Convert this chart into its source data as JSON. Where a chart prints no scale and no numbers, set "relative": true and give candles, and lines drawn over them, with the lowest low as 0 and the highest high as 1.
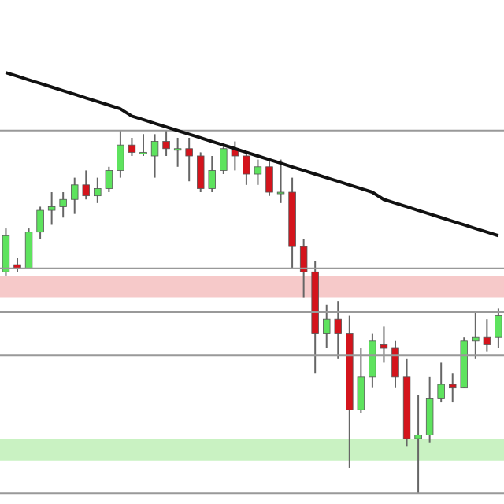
{
  "chart_data": {
    "type": "candlestick",
    "relative": true,
    "categories": [
      null,
      null,
      null,
      null,
      null,
      null,
      null,
      null,
      null,
      null,
      null,
      null,
      null,
      null,
      null,
      null,
      null,
      null,
      null,
      null,
      null,
      null,
      null,
      null,
      null,
      null,
      null,
      null,
      null,
      null,
      null,
      null,
      null,
      null,
      null,
      null,
      null,
      null,
      null,
      null,
      null,
      null,
      null,
      null
    ],
    "ohlc": [
      [
        0.61,
        0.73,
        0.6,
        0.71
      ],
      [
        0.63,
        0.65,
        0.61,
        0.62
      ],
      [
        0.62,
        0.73,
        0.62,
        0.72
      ],
      [
        0.72,
        0.79,
        0.7,
        0.78
      ],
      [
        0.78,
        0.83,
        0.74,
        0.79
      ],
      [
        0.79,
        0.83,
        0.76,
        0.81
      ],
      [
        0.81,
        0.87,
        0.77,
        0.85
      ],
      [
        0.85,
        0.89,
        0.81,
        0.82
      ],
      [
        0.82,
        0.87,
        0.8,
        0.84
      ],
      [
        0.84,
        0.9,
        0.83,
        0.89
      ],
      [
        0.89,
        1.0,
        0.87,
        0.96
      ],
      [
        0.96,
        0.98,
        0.93,
        0.94
      ],
      [
        0.94,
        0.99,
        0.93,
        0.94
      ],
      [
        0.93,
        0.99,
        0.87,
        0.97
      ],
      [
        0.97,
        1.0,
        0.93,
        0.95
      ],
      [
        0.95,
        0.98,
        0.9,
        0.95
      ],
      [
        0.95,
        0.98,
        0.86,
        0.93
      ],
      [
        0.93,
        0.94,
        0.83,
        0.84
      ],
      [
        0.84,
        0.93,
        0.83,
        0.89
      ],
      [
        0.89,
        0.96,
        0.88,
        0.95
      ],
      [
        0.95,
        0.97,
        0.89,
        0.93
      ],
      [
        0.93,
        0.94,
        0.85,
        0.88
      ],
      [
        0.88,
        0.92,
        0.85,
        0.9
      ],
      [
        0.9,
        0.92,
        0.82,
        0.83
      ],
      [
        0.83,
        0.92,
        0.8,
        0.83
      ],
      [
        0.83,
        0.87,
        0.62,
        0.68
      ],
      [
        0.68,
        0.7,
        0.54,
        0.61
      ],
      [
        0.61,
        0.64,
        0.33,
        0.44
      ],
      [
        0.44,
        0.52,
        0.4,
        0.48
      ],
      [
        0.48,
        0.53,
        0.37,
        0.44
      ],
      [
        0.44,
        0.49,
        0.07,
        0.23
      ],
      [
        0.23,
        0.4,
        0.22,
        0.32
      ],
      [
        0.32,
        0.44,
        0.29,
        0.42
      ],
      [
        0.41,
        0.46,
        0.36,
        0.4
      ],
      [
        0.4,
        0.42,
        0.29,
        0.32
      ],
      [
        0.32,
        0.37,
        0.13,
        0.15
      ],
      [
        0.15,
        0.27,
        0.0,
        0.16
      ],
      [
        0.16,
        0.32,
        0.14,
        0.26
      ],
      [
        0.26,
        0.36,
        0.25,
        0.3
      ],
      [
        0.3,
        0.33,
        0.25,
        0.29
      ],
      [
        0.29,
        0.43,
        0.29,
        0.42
      ],
      [
        0.42,
        0.5,
        0.37,
        0.43
      ],
      [
        0.43,
        0.48,
        0.39,
        0.41
      ],
      [
        0.43,
        0.51,
        0.4,
        0.49
      ]
    ],
    "colors": [
      "#5ee35e",
      "#d4141c",
      "#5ee35e",
      "#5ee35e",
      "#5ee35e",
      "#5ee35e",
      "#5ee35e",
      "#d4141c",
      "#5ee35e",
      "#5ee35e",
      "#5ee35e",
      "#d4141c",
      "#5ee35e",
      "#5ee35e",
      "#d4141c",
      "#5ee35e",
      "#d4141c",
      "#d4141c",
      "#5ee35e",
      "#5ee35e",
      "#d4141c",
      "#d4141c",
      "#5ee35e",
      "#d4141c",
      "#5ee35e",
      "#d4141c",
      "#d4141c",
      "#d4141c",
      "#5ee35e",
      "#d4141c",
      "#d4141c",
      "#5ee35e",
      "#5ee35e",
      "#d4141c",
      "#d4141c",
      "#d4141c",
      "#5ee35e",
      "#5ee35e",
      "#5ee35e",
      "#d4141c",
      "#5ee35e",
      "#5ee35e",
      "#d4141c",
      "#5ee35e"
    ],
    "series": [
      {
        "type": "line",
        "color": "#111111",
        "values": [
          1.16,
          1.15,
          1.14,
          1.13,
          1.12,
          1.11,
          1.1,
          1.09,
          1.08,
          1.07,
          1.06,
          1.04,
          1.03,
          1.02,
          1.01,
          1.0,
          0.99,
          0.98,
          0.97,
          0.96,
          0.95,
          0.94,
          0.93,
          0.92,
          0.91,
          0.9,
          0.89,
          0.88,
          0.87,
          0.86,
          0.85,
          0.84,
          0.83,
          0.81,
          0.8,
          0.79,
          0.78,
          0.77,
          0.76,
          0.75,
          0.74,
          0.73,
          0.72,
          0.71
        ]
      }
    ],
    "ref_lines": [
      {
        "axis": "y",
        "value": 1.0,
        "color": "#999999"
      },
      {
        "axis": "y",
        "value": 0.62,
        "color": "#999999"
      },
      {
        "axis": "y",
        "value": 0.5,
        "color": "#999999"
      },
      {
        "axis": "y",
        "value": 0.38,
        "color": "#999999"
      },
      {
        "axis": "y",
        "value": 0.0,
        "color": "#999999"
      }
    ],
    "bands": [
      {
        "axis": "y",
        "from": 0.54,
        "to": 0.6,
        "color": "#f6c9c9"
      },
      {
        "axis": "y",
        "from": 0.09,
        "to": 0.15,
        "color": "#c9f2c2"
      }
    ]
  }
}
